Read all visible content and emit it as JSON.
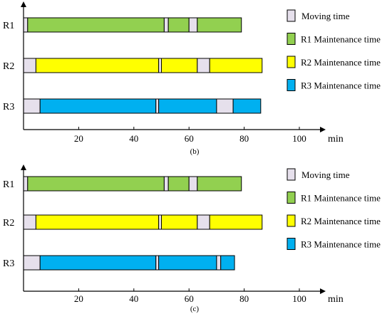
{
  "chart_data": [
    {
      "type": "bar",
      "subtype": "gantt",
      "caption": "(b)",
      "x_unit": "min",
      "xlim": [
        0,
        105
      ],
      "x_ticks": [
        20,
        40,
        60,
        80,
        100
      ],
      "rows": [
        {
          "label": "R1",
          "segments": [
            {
              "type": "moving",
              "start": 0,
              "end": 1.5
            },
            {
              "type": "r1",
              "start": 1.5,
              "end": 51
            },
            {
              "type": "moving",
              "start": 51,
              "end": 52.5
            },
            {
              "type": "r1",
              "start": 52.5,
              "end": 60
            },
            {
              "type": "moving",
              "start": 60,
              "end": 63
            },
            {
              "type": "r1",
              "start": 63,
              "end": 79
            }
          ]
        },
        {
          "label": "R2",
          "segments": [
            {
              "type": "moving",
              "start": 0,
              "end": 4.5
            },
            {
              "type": "r2",
              "start": 4.5,
              "end": 49
            },
            {
              "type": "moving",
              "start": 49,
              "end": 50
            },
            {
              "type": "r2",
              "start": 50,
              "end": 63
            },
            {
              "type": "moving",
              "start": 63,
              "end": 67.5
            },
            {
              "type": "r2",
              "start": 67.5,
              "end": 86.5
            }
          ]
        },
        {
          "label": "R3",
          "segments": [
            {
              "type": "moving",
              "start": 0,
              "end": 6
            },
            {
              "type": "r3",
              "start": 6,
              "end": 48
            },
            {
              "type": "moving",
              "start": 48,
              "end": 49
            },
            {
              "type": "r3",
              "start": 49,
              "end": 70
            },
            {
              "type": "moving",
              "start": 70,
              "end": 76
            },
            {
              "type": "r3",
              "start": 76,
              "end": 86
            }
          ]
        }
      ]
    },
    {
      "type": "bar",
      "subtype": "gantt",
      "caption": "(c)",
      "x_unit": "min",
      "xlim": [
        0,
        105
      ],
      "x_ticks": [
        20,
        40,
        60,
        80,
        100
      ],
      "rows": [
        {
          "label": "R1",
          "segments": [
            {
              "type": "moving",
              "start": 0,
              "end": 1.5
            },
            {
              "type": "r1",
              "start": 1.5,
              "end": 51
            },
            {
              "type": "moving",
              "start": 51,
              "end": 52.5
            },
            {
              "type": "r1",
              "start": 52.5,
              "end": 60
            },
            {
              "type": "moving",
              "start": 60,
              "end": 63
            },
            {
              "type": "r1",
              "start": 63,
              "end": 79
            }
          ]
        },
        {
          "label": "R2",
          "segments": [
            {
              "type": "moving",
              "start": 0,
              "end": 4.5
            },
            {
              "type": "r2",
              "start": 4.5,
              "end": 49
            },
            {
              "type": "moving",
              "start": 49,
              "end": 50
            },
            {
              "type": "r2",
              "start": 50,
              "end": 63
            },
            {
              "type": "moving",
              "start": 63,
              "end": 67.5
            },
            {
              "type": "r2",
              "start": 67.5,
              "end": 86.5
            }
          ]
        },
        {
          "label": "R3",
          "segments": [
            {
              "type": "moving",
              "start": 0,
              "end": 6
            },
            {
              "type": "r3",
              "start": 6,
              "end": 48
            },
            {
              "type": "moving",
              "start": 48,
              "end": 49
            },
            {
              "type": "r3",
              "start": 49,
              "end": 70
            },
            {
              "type": "moving",
              "start": 70,
              "end": 71.5
            },
            {
              "type": "r3",
              "start": 71.5,
              "end": 76.5
            }
          ]
        }
      ]
    }
  ],
  "legend": [
    {
      "type": "moving",
      "label": "Moving time",
      "color": "#e6e0ec"
    },
    {
      "type": "r1",
      "label": "R1 Maintenance time",
      "color": "#92d050"
    },
    {
      "type": "r2",
      "label": "R2 Maintenance time",
      "color": "#ffff00"
    },
    {
      "type": "r3",
      "label": "R3 Maintenance time",
      "color": "#00b0f0"
    }
  ]
}
